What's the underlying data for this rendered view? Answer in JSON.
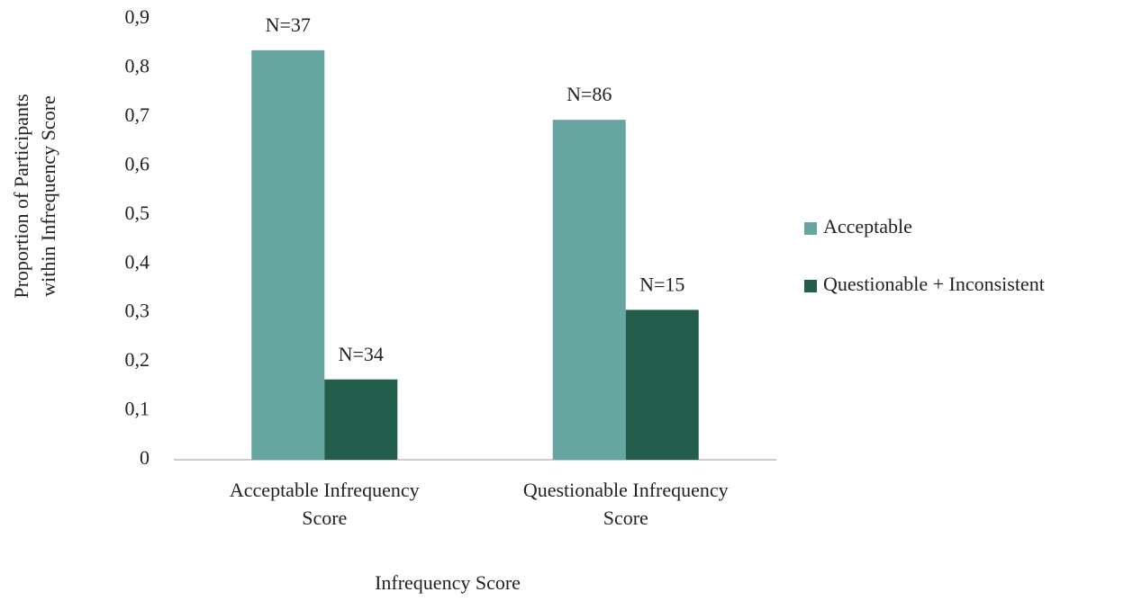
{
  "chart_data": {
    "type": "bar",
    "x_label": "Infrequency Score",
    "y_label": [
      "Proportion of Participants",
      "within Infrequency Score"
    ],
    "categories": [
      "Acceptable Infrequency Score",
      "Questionable Infrequency Score"
    ],
    "series": [
      {
        "name": "Acceptable",
        "color": "#66a5a0",
        "values": [
          0.836,
          0.694
        ],
        "annotations": [
          "N=37",
          "N=86"
        ]
      },
      {
        "name": "Questionable + Inconsistent",
        "color": "#225e4b",
        "values": [
          0.164,
          0.306
        ],
        "annotations": [
          "N=34",
          "N=15"
        ]
      }
    ],
    "ylim": [
      0,
      0.9
    ],
    "yticks": [
      0,
      {
        "value": 0.1,
        "label": "0,1"
      },
      {
        "value": 0.2,
        "label": "0,2"
      },
      {
        "value": 0.3,
        "label": "0,3"
      },
      {
        "value": 0.4,
        "label": "0,4"
      },
      {
        "value": 0.5,
        "label": "0,5"
      },
      {
        "value": 0.6,
        "label": "0,6"
      },
      {
        "value": 0.7,
        "label": "0,7"
      },
      {
        "value": 0.8,
        "label": "0,8"
      },
      {
        "value": 0.9,
        "label": "0,9"
      }
    ],
    "grid": false,
    "legend": "right"
  }
}
